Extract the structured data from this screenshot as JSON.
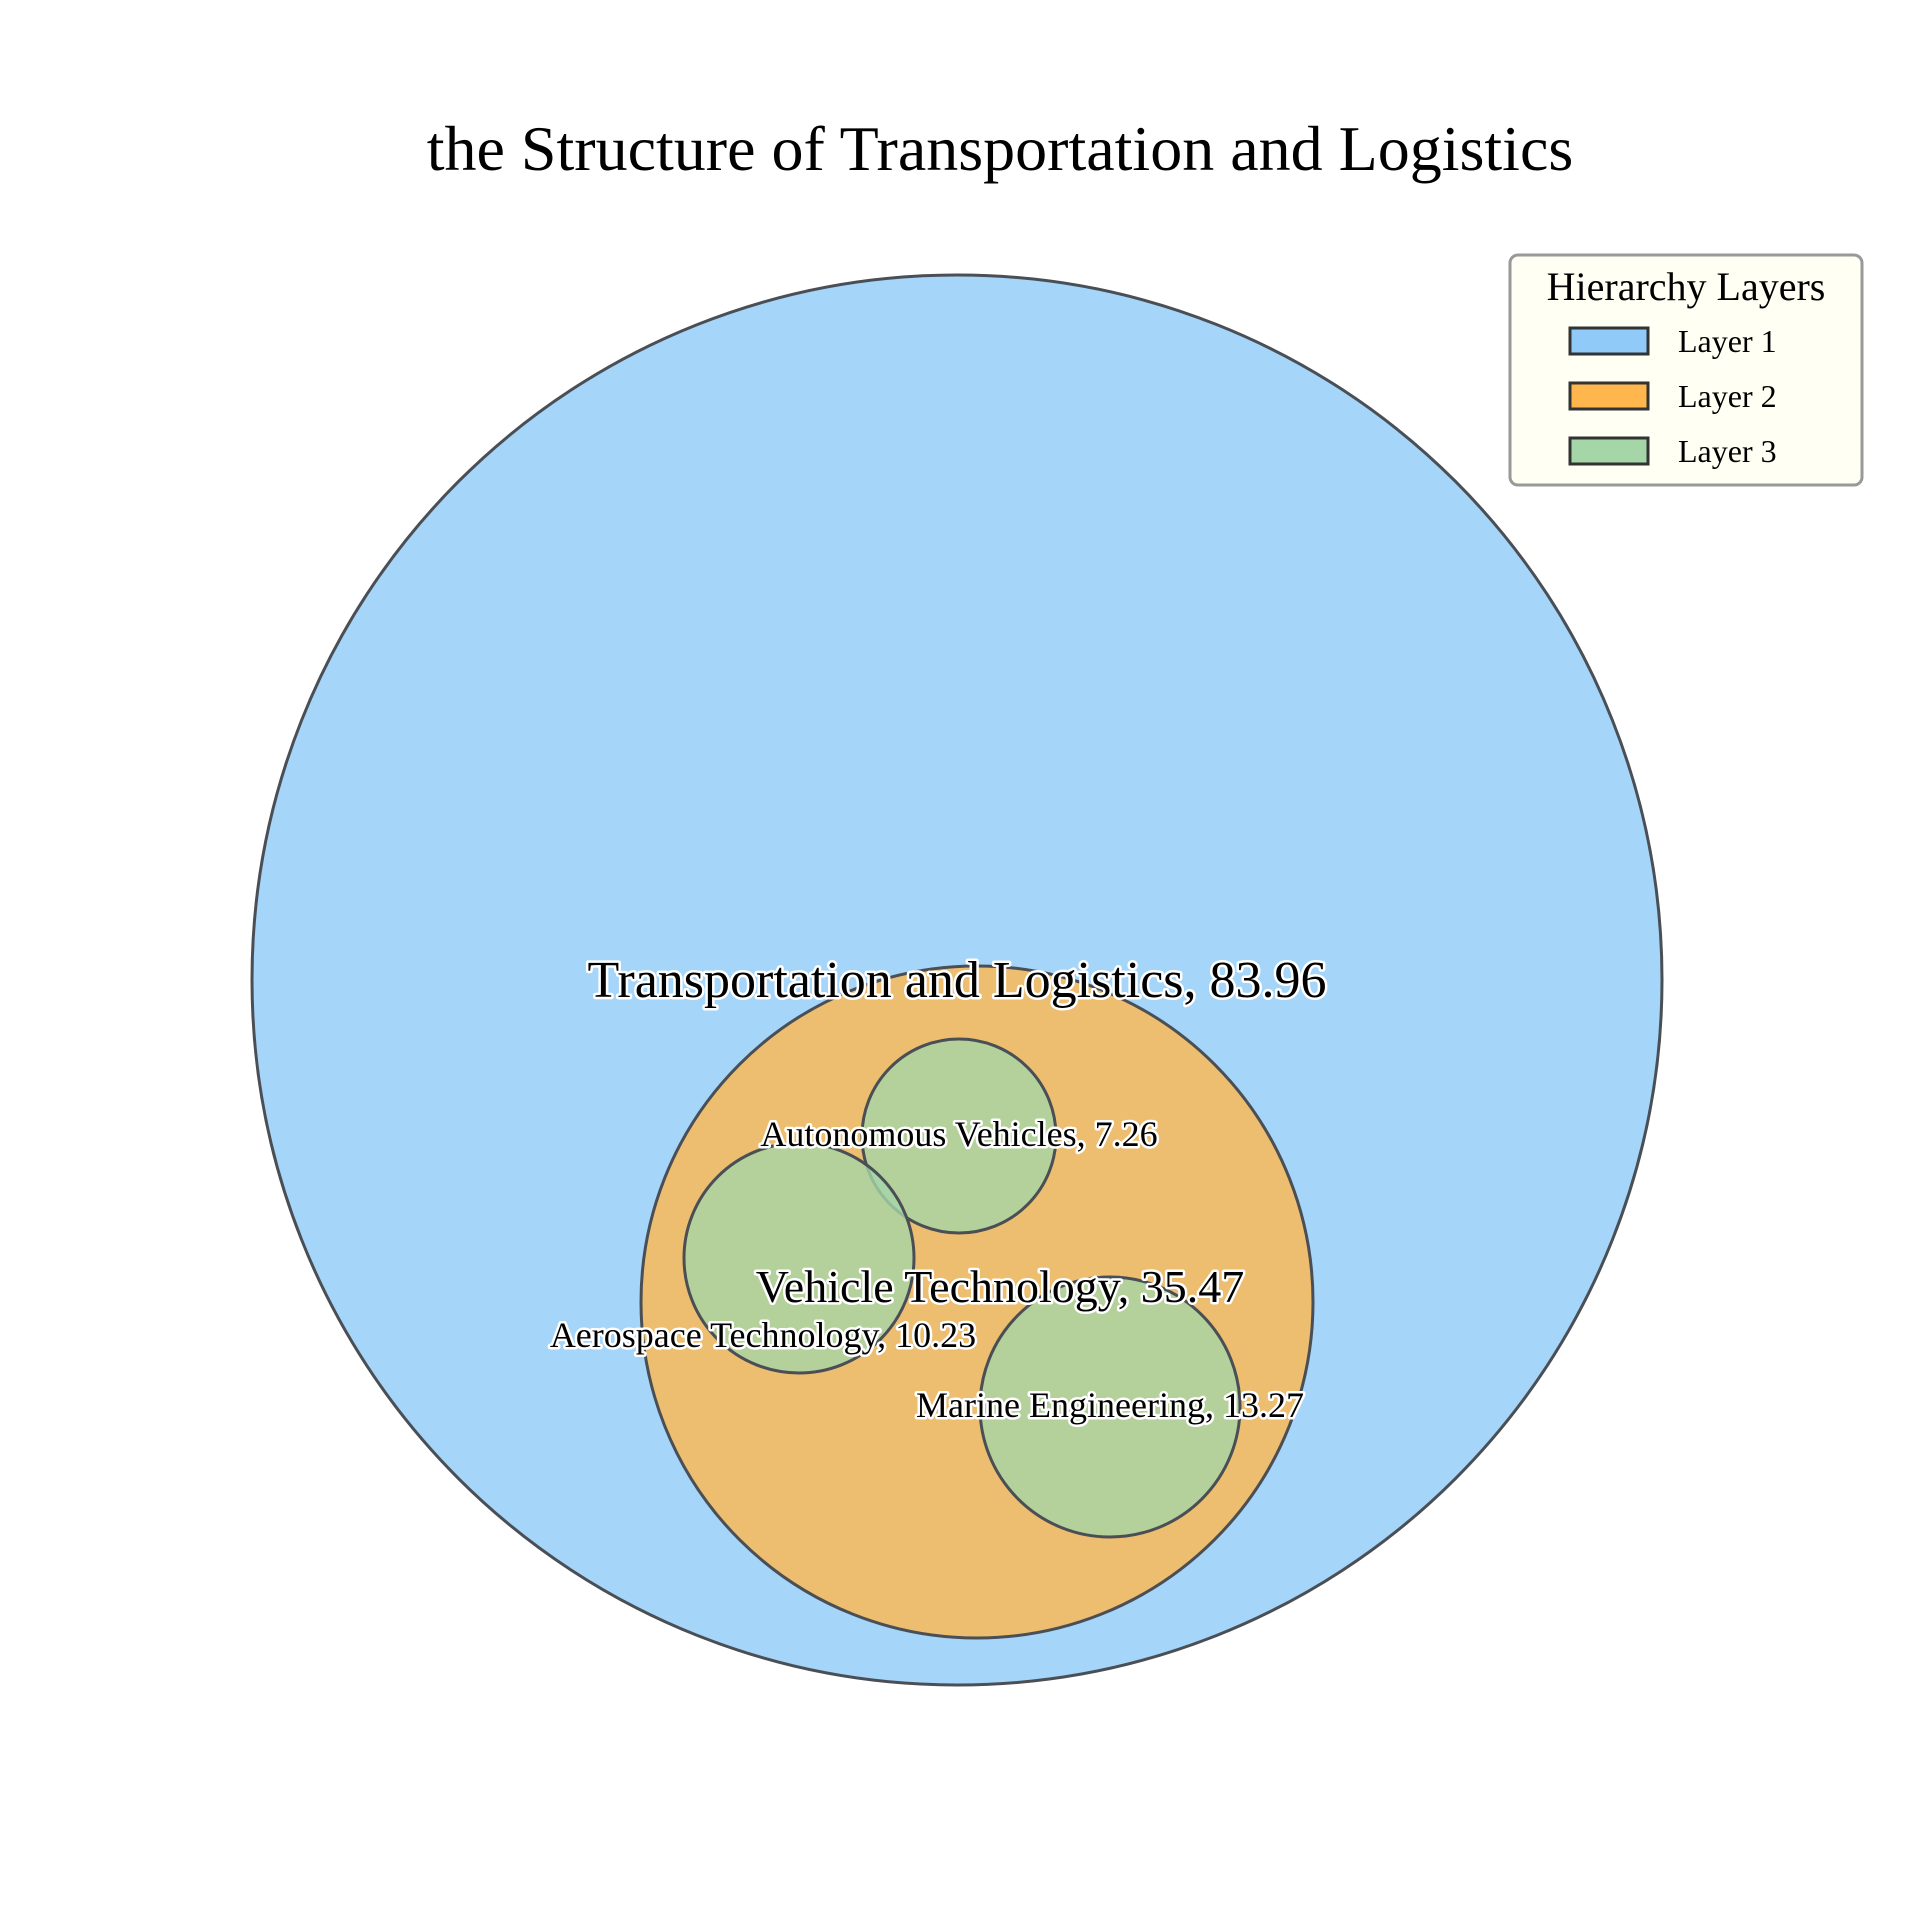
{
  "chart_data": {
    "type": "circle-packing",
    "title": "the Structure of Transportation and Logistics",
    "legend": {
      "title": "Hierarchy Layers",
      "placement": "top-right",
      "items": [
        {
          "label": "Layer 1",
          "color": "#90caf9"
        },
        {
          "label": "Layer 2",
          "color": "#ffb74d"
        },
        {
          "label": "Layer 3",
          "color": "#a5d6a7"
        }
      ]
    },
    "nodes": [
      {
        "name": "Transportation and Logistics",
        "value": 83.96,
        "layer": 1,
        "label": "Transportation and Logistics, 83.96"
      },
      {
        "name": "Vehicle Technology",
        "value": 35.47,
        "layer": 2,
        "parent": "Transportation and Logistics",
        "label": "Vehicle Technology, 35.47"
      },
      {
        "name": "Autonomous Vehicles",
        "value": 7.26,
        "layer": 3,
        "parent": "Vehicle Technology",
        "label": "Autonomous Vehicles, 7.26"
      },
      {
        "name": "Aerospace Technology",
        "value": 10.23,
        "layer": 3,
        "parent": "Vehicle Technology",
        "label": "Aerospace Technology, 10.23"
      },
      {
        "name": "Marine Engineering",
        "value": 13.27,
        "layer": 3,
        "parent": "Vehicle Technology",
        "label": "Marine Engineering, 13.27"
      }
    ]
  }
}
